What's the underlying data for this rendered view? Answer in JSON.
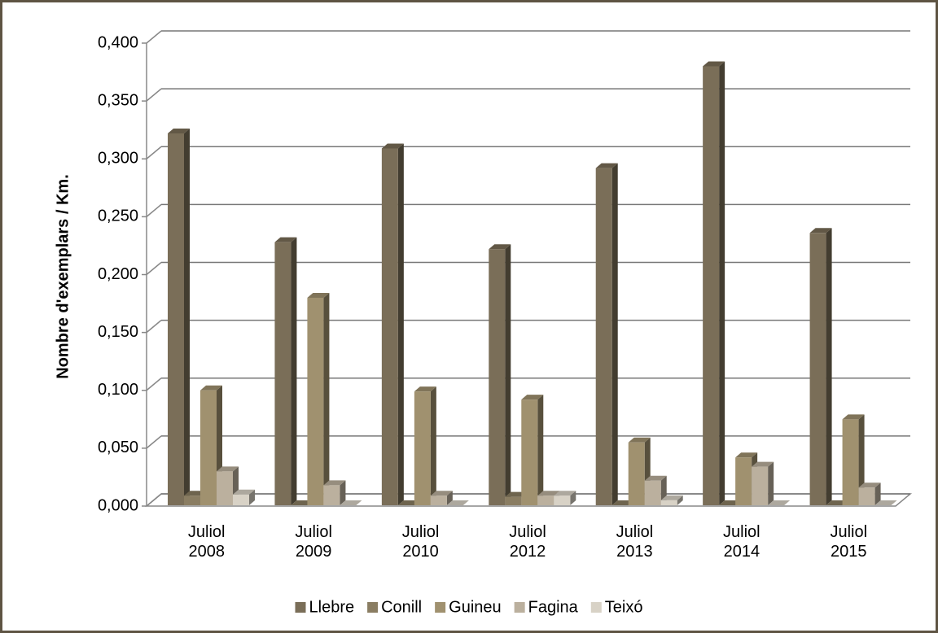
{
  "chart_data": {
    "type": "bar3d",
    "y_label": "Nombre d'exemplars / Km.",
    "categories": [
      "Juliol 2008",
      "Juliol 2009",
      "Juliol 2010",
      "Juliol 2012",
      "Juliol 2013",
      "Juliol 2014",
      "Juliol 2015"
    ],
    "series": [
      {
        "name": "Llebre",
        "color": "#7a6e58",
        "values": [
          0.322,
          0.228,
          0.309,
          0.222,
          0.292,
          0.38,
          0.236
        ]
      },
      {
        "name": "Conill",
        "color": "#8a7d62",
        "values": [
          0.009,
          0,
          0,
          0.008,
          0,
          0,
          0
        ]
      },
      {
        "name": "Guineu",
        "color": "#a0916f",
        "values": [
          0.1,
          0.18,
          0.099,
          0.092,
          0.055,
          0.042,
          0.075
        ]
      },
      {
        "name": "Fagina",
        "color": "#bbb09e",
        "values": [
          0.03,
          0.018,
          0.009,
          0.009,
          0.022,
          0.034,
          0.016
        ]
      },
      {
        "name": "Teixó",
        "color": "#d8d2c6",
        "values": [
          0.01,
          0,
          0,
          0.009,
          0.005,
          0,
          0
        ]
      }
    ],
    "ylim": [
      0,
      0.4
    ],
    "yticks": [
      {
        "value": 0,
        "label": "0,000"
      },
      {
        "value": 0.05,
        "label": "0,050"
      },
      {
        "value": 0.1,
        "label": "0,100"
      },
      {
        "value": 0.15,
        "label": "0,150"
      },
      {
        "value": 0.2,
        "label": "0,200"
      },
      {
        "value": 0.25,
        "label": "0,250"
      },
      {
        "value": 0.3,
        "label": "0,300"
      },
      {
        "value": 0.35,
        "label": "0,350"
      },
      {
        "value": 0.4,
        "label": "0,400"
      }
    ],
    "grid": true,
    "legend": "bottom"
  }
}
